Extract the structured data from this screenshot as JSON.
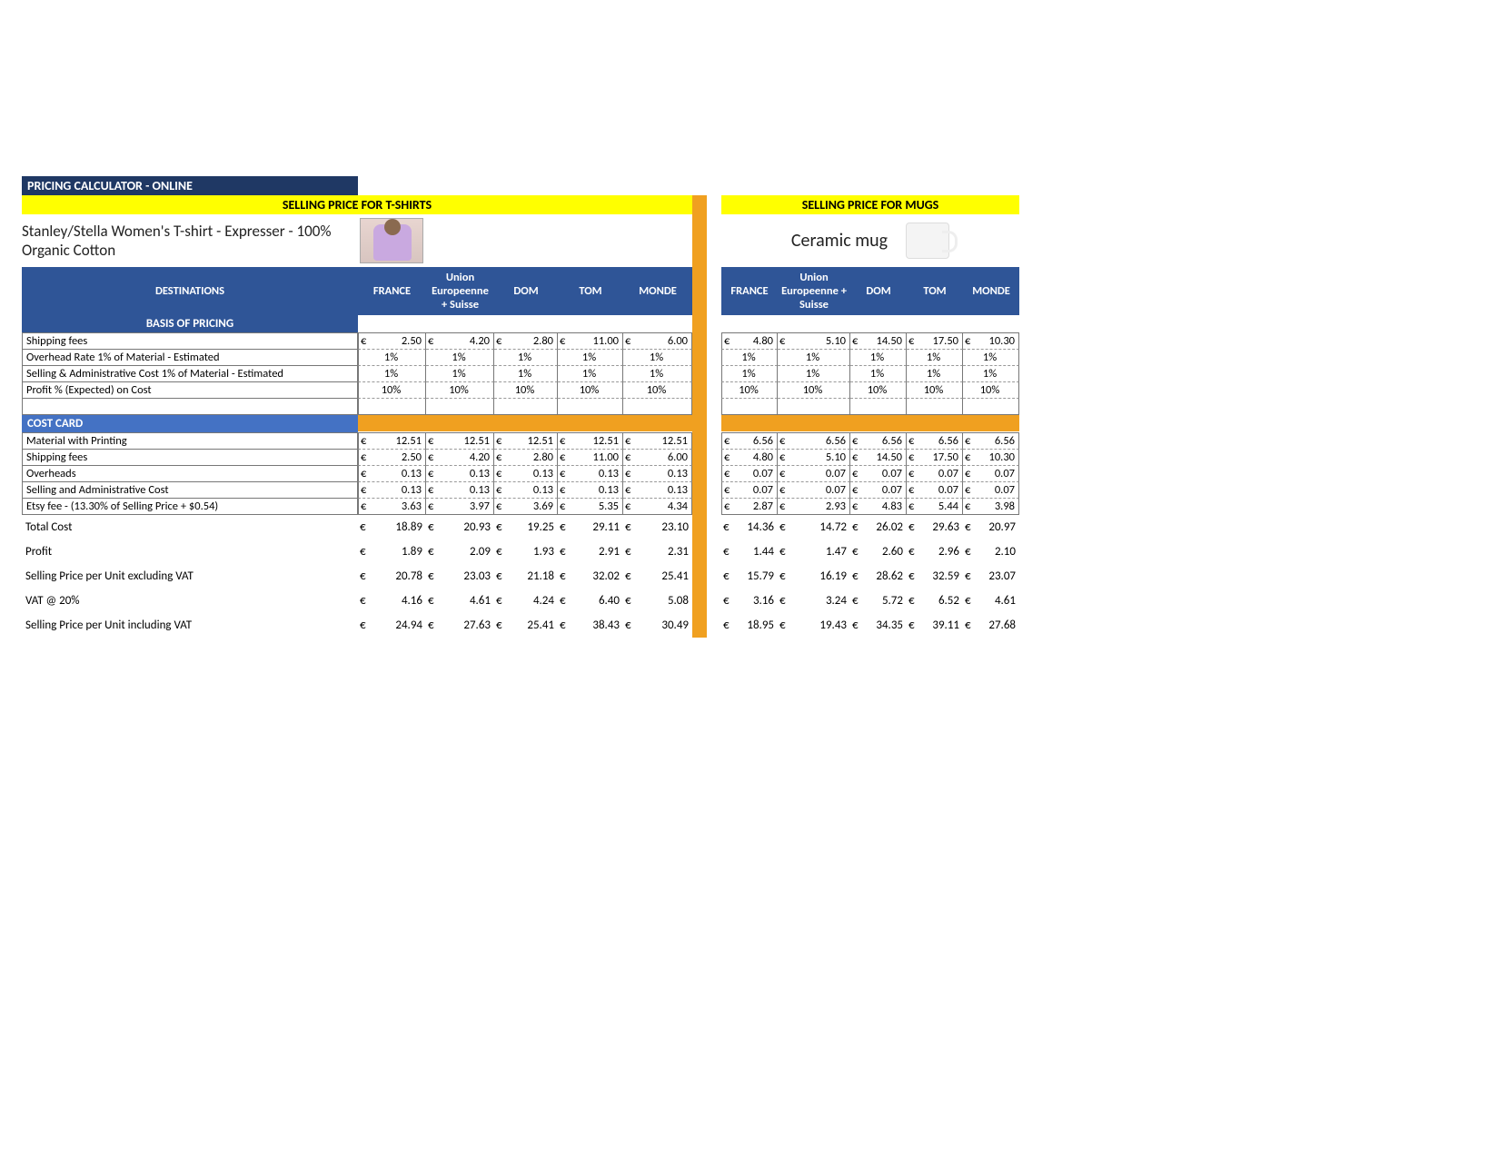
{
  "colors": {
    "header_blue": "#2f5597",
    "dark_blue": "#1f3864",
    "mid_blue": "#4472c4",
    "yellow": "#ffff00",
    "orange": "#f0a020",
    "border": "#777777",
    "dash": "#999999",
    "text": "#000000",
    "white": "#ffffff"
  },
  "title": "PRICING CALCULATOR - ONLINE",
  "banner_left": "SELLING PRICE FOR T-SHIRTS",
  "banner_right": "SELLING PRICE FOR MUGS",
  "product_left": "Stanley/Stella Women's T-shirt - Expresser - 100% Organic Cotton",
  "product_right": "Ceramic mug",
  "currency": "€",
  "headers": {
    "dest": "DESTINATIONS",
    "cols_left": [
      "FRANCE",
      "Union Europeenne + Suisse",
      "DOM",
      "TOM",
      "MONDE"
    ],
    "cols_right": [
      "FRANCE",
      "Union Europeenne + Suisse",
      "DOM",
      "TOM",
      "MONDE"
    ]
  },
  "basis_label": "BASIS OF PRICING",
  "basis_rows": [
    {
      "label": "Shipping fees",
      "type": "money",
      "left": [
        "2.50",
        "4.20",
        "2.80",
        "11.00",
        "6.00"
      ],
      "right": [
        "4.80",
        "5.10",
        "14.50",
        "17.50",
        "10.30"
      ]
    },
    {
      "label": "Overhead Rate 1% of Material - Estimated",
      "type": "pct",
      "left": [
        "1%",
        "1%",
        "1%",
        "1%",
        "1%"
      ],
      "right": [
        "1%",
        "1%",
        "1%",
        "1%",
        "1%"
      ]
    },
    {
      "label": "Selling & Administrative Cost 1% of Material - Estimated",
      "type": "pct",
      "left": [
        "1%",
        "1%",
        "1%",
        "1%",
        "1%"
      ],
      "right": [
        "1%",
        "1%",
        "1%",
        "1%",
        "1%"
      ]
    },
    {
      "label": "Profit % (Expected) on Cost",
      "type": "pct",
      "left": [
        "10%",
        "10%",
        "10%",
        "10%",
        "10%"
      ],
      "right": [
        "10%",
        "10%",
        "10%",
        "10%",
        "10%"
      ]
    }
  ],
  "costcard_label": "COST CARD",
  "cost_rows": [
    {
      "label": "Material with Printing",
      "left": [
        "12.51",
        "12.51",
        "12.51",
        "12.51",
        "12.51"
      ],
      "right": [
        "6.56",
        "6.56",
        "6.56",
        "6.56",
        "6.56"
      ]
    },
    {
      "label": "Shipping fees",
      "left": [
        "2.50",
        "4.20",
        "2.80",
        "11.00",
        "6.00"
      ],
      "right": [
        "4.80",
        "5.10",
        "14.50",
        "17.50",
        "10.30"
      ]
    },
    {
      "label": "Overheads",
      "left": [
        "0.13",
        "0.13",
        "0.13",
        "0.13",
        "0.13"
      ],
      "right": [
        "0.07",
        "0.07",
        "0.07",
        "0.07",
        "0.07"
      ]
    },
    {
      "label": "Selling and Administrative Cost",
      "left": [
        "0.13",
        "0.13",
        "0.13",
        "0.13",
        "0.13"
      ],
      "right": [
        "0.07",
        "0.07",
        "0.07",
        "0.07",
        "0.07"
      ]
    },
    {
      "label": "Etsy fee - (13.30% of Selling Price + $0.54)",
      "left": [
        "3.63",
        "3.97",
        "3.69",
        "5.35",
        "4.34"
      ],
      "right": [
        "2.87",
        "2.93",
        "4.83",
        "5.44",
        "3.98"
      ]
    }
  ],
  "summary_rows": [
    {
      "label": "Total Cost",
      "left": [
        "18.89",
        "20.93",
        "19.25",
        "29.11",
        "23.10"
      ],
      "right": [
        "14.36",
        "14.72",
        "26.02",
        "29.63",
        "20.97"
      ]
    },
    {
      "label": "Profit",
      "left": [
        "1.89",
        "2.09",
        "1.93",
        "2.91",
        "2.31"
      ],
      "right": [
        "1.44",
        "1.47",
        "2.60",
        "2.96",
        "2.10"
      ]
    },
    {
      "label": "Selling Price per Unit excluding VAT",
      "left": [
        "20.78",
        "23.03",
        "21.18",
        "32.02",
        "25.41"
      ],
      "right": [
        "15.79",
        "16.19",
        "28.62",
        "32.59",
        "23.07"
      ]
    },
    {
      "label": "VAT @ 20%",
      "left": [
        "4.16",
        "4.61",
        "4.24",
        "6.40",
        "5.08"
      ],
      "right": [
        "3.16",
        "3.24",
        "5.72",
        "6.52",
        "4.61"
      ]
    },
    {
      "label": "Selling Price per Unit including VAT",
      "left": [
        "24.94",
        "27.63",
        "25.41",
        "38.43",
        "30.49"
      ],
      "right": [
        "18.95",
        "19.43",
        "34.35",
        "39.11",
        "27.68"
      ]
    }
  ]
}
